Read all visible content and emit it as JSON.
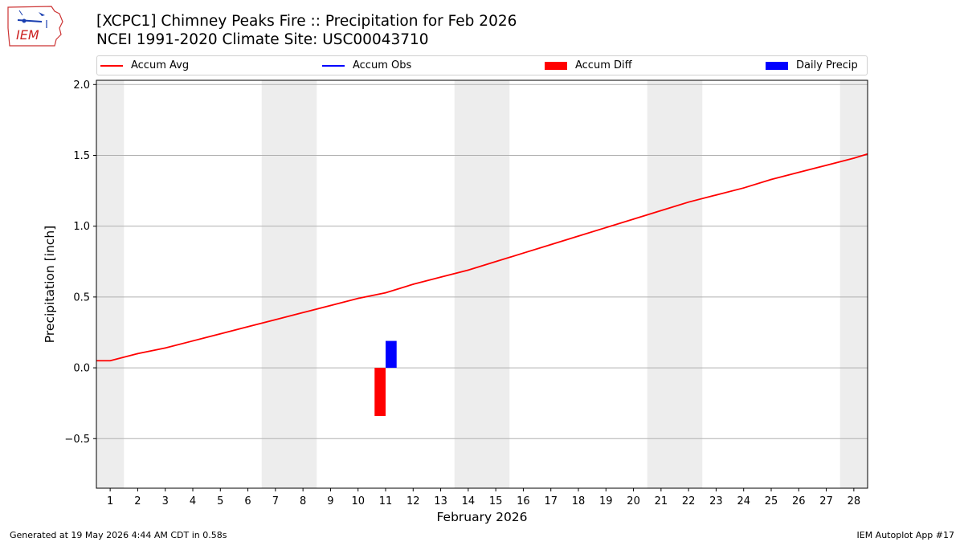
{
  "header": {
    "title_line1": "[XCPC1] Chimney Peaks Fire :: Precipitation for Feb 2026",
    "title_line2": "NCEI 1991-2020 Climate Site: USC00043710",
    "logo_text": "IEM"
  },
  "legend": {
    "items": [
      {
        "label": "Accum Avg",
        "kind": "line",
        "color": "#ff0000"
      },
      {
        "label": "Accum Obs",
        "kind": "line",
        "color": "#0000ff"
      },
      {
        "label": "Accum Diff",
        "kind": "patch",
        "color": "#ff0000"
      },
      {
        "label": "Daily Precip",
        "kind": "patch",
        "color": "#0000ff"
      }
    ]
  },
  "footer": {
    "left": "Generated at 19 May 2026 4:44 AM CDT in 0.58s",
    "right": "IEM Autoplot App #17"
  },
  "chart_data": {
    "type": "line",
    "xlabel": "February 2026",
    "ylabel": "Precipitation [inch]",
    "x": [
      1,
      2,
      3,
      4,
      5,
      6,
      7,
      8,
      9,
      10,
      11,
      12,
      13,
      14,
      15,
      16,
      17,
      18,
      19,
      20,
      21,
      22,
      23,
      24,
      25,
      26,
      27,
      28
    ],
    "xlim": [
      0.5,
      28.5
    ],
    "ylim": [
      -0.85,
      2.03
    ],
    "yticks": [
      -0.5,
      0.0,
      0.5,
      1.0,
      1.5,
      2.0
    ],
    "ytick_labels": [
      "−0.5",
      "0.0",
      "0.5",
      "1.0",
      "1.5",
      "2.0"
    ],
    "grid": "horizontal",
    "weekend_shading": [
      [
        0.5,
        1.5
      ],
      [
        6.5,
        8.5
      ],
      [
        13.5,
        15.5
      ],
      [
        20.5,
        22.5
      ],
      [
        27.5,
        28.5
      ]
    ],
    "series": [
      {
        "name": "Accum Avg",
        "type": "line",
        "color": "#ff0000",
        "x": [
          0.5,
          1,
          2,
          3,
          4,
          5,
          6,
          7,
          8,
          9,
          10,
          11,
          12,
          13,
          14,
          15,
          16,
          17,
          18,
          19,
          20,
          21,
          22,
          23,
          24,
          25,
          26,
          27,
          28,
          28.5
        ],
        "values": [
          0.05,
          0.05,
          0.1,
          0.14,
          0.19,
          0.24,
          0.29,
          0.34,
          0.39,
          0.44,
          0.49,
          0.53,
          0.59,
          0.64,
          0.69,
          0.75,
          0.81,
          0.87,
          0.93,
          0.99,
          1.05,
          1.11,
          1.17,
          1.22,
          1.27,
          1.33,
          1.38,
          1.43,
          1.48,
          1.51
        ]
      },
      {
        "name": "Accum Diff",
        "type": "bar",
        "color": "#ff0000",
        "x": [
          10.8
        ],
        "values": [
          -0.34
        ]
      },
      {
        "name": "Daily Precip",
        "type": "bar",
        "color": "#0000ff",
        "x": [
          11.2
        ],
        "values": [
          0.19
        ]
      }
    ]
  }
}
